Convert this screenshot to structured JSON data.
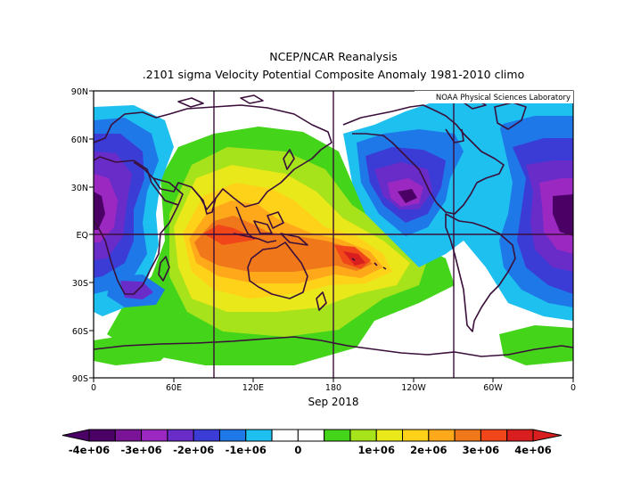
{
  "title": {
    "line1": "NCEP/NCAR Reanalysis",
    "line2": ".2101 sigma Velocity Potential   Composite Anomaly 1981-2010 climo"
  },
  "credit": "NOAA Physical Sciences Laboratory",
  "date": "Sep 2018",
  "map": {
    "lat_labels": [
      "90N",
      "60N",
      "30N",
      "EQ",
      "30S",
      "60S",
      "90S"
    ],
    "lon_labels": [
      "0",
      "60E",
      "120E",
      "180",
      "120W",
      "60W",
      "0"
    ]
  },
  "colorbar": {
    "labels": [
      "-4e+06",
      "-3e+06",
      "-2e+06",
      "-1e+06",
      "0",
      "1e+06",
      "2e+06",
      "3e+06",
      "4e+06"
    ],
    "colors": [
      "#4b0066",
      "#7a1496",
      "#9b28c0",
      "#6a2cc8",
      "#3b3bd6",
      "#1e78e8",
      "#1ec0f0",
      "#ffffff",
      "#ffffff",
      "#44d41a",
      "#a6e31a",
      "#e8e81a",
      "#ffd21a",
      "#ffa81a",
      "#f0781a",
      "#f0461a",
      "#d81e1e"
    ]
  },
  "colors": {
    "frame": "#000000",
    "coast": "#3a0f3a",
    "grid": "#3a0f3a"
  }
}
